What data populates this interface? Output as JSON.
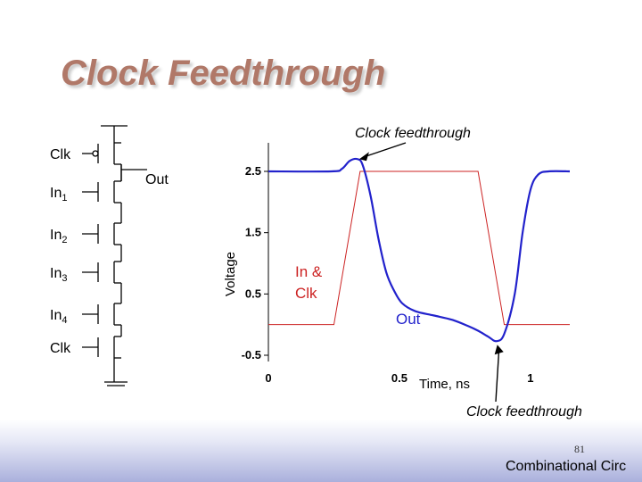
{
  "title": "Clock Feedthrough",
  "schematic": {
    "inputs": [
      {
        "label": "Clk",
        "sub": "",
        "bubble": true
      },
      {
        "label": "In",
        "sub": "1",
        "bubble": false
      },
      {
        "label": "In",
        "sub": "2",
        "bubble": false
      },
      {
        "label": "In",
        "sub": "3",
        "bubble": false
      },
      {
        "label": "In",
        "sub": "4",
        "bubble": false
      },
      {
        "label": "Clk",
        "sub": "",
        "bubble": false
      }
    ],
    "output_label": "Out"
  },
  "chart_data": {
    "type": "line",
    "ylabel": "Voltage",
    "xlabel": "Time, ns",
    "xlim": [
      0,
      1.15
    ],
    "ylim": [
      -0.5,
      2.5
    ],
    "x_ticks": [
      "0",
      "0.5",
      "1"
    ],
    "y_ticks": [
      "2.5",
      "1.5",
      "0.5",
      "-0.5"
    ],
    "series": [
      {
        "name": "In & Clk",
        "color": "#cc2222",
        "points": [
          [
            0,
            0
          ],
          [
            0.25,
            0
          ],
          [
            0.35,
            2.5
          ],
          [
            0.8,
            2.5
          ],
          [
            0.9,
            0
          ],
          [
            1.15,
            0
          ]
        ]
      },
      {
        "name": "Out",
        "color": "#2222cc",
        "points": [
          [
            0,
            2.5
          ],
          [
            0.24,
            2.5
          ],
          [
            0.28,
            2.54
          ],
          [
            0.31,
            2.67
          ],
          [
            0.34,
            2.7
          ],
          [
            0.36,
            2.6
          ],
          [
            0.39,
            2.1
          ],
          [
            0.42,
            1.4
          ],
          [
            0.45,
            0.85
          ],
          [
            0.48,
            0.55
          ],
          [
            0.51,
            0.35
          ],
          [
            0.56,
            0.22
          ],
          [
            0.63,
            0.15
          ],
          [
            0.7,
            0.08
          ],
          [
            0.76,
            -0.02
          ],
          [
            0.8,
            -0.1
          ],
          [
            0.84,
            -0.2
          ],
          [
            0.87,
            -0.27
          ],
          [
            0.9,
            -0.15
          ],
          [
            0.94,
            0.5
          ],
          [
            0.97,
            1.5
          ],
          [
            1.0,
            2.2
          ],
          [
            1.03,
            2.45
          ],
          [
            1.07,
            2.5
          ],
          [
            1.15,
            2.5
          ]
        ]
      }
    ],
    "annotations": [
      {
        "text": "Clock feedthrough",
        "at": [
          0.34,
          2.7
        ]
      },
      {
        "text": "Clock feedthrough",
        "at": [
          0.87,
          -0.27
        ]
      }
    ]
  },
  "page_number": "81",
  "footer": "Combinational Circ"
}
